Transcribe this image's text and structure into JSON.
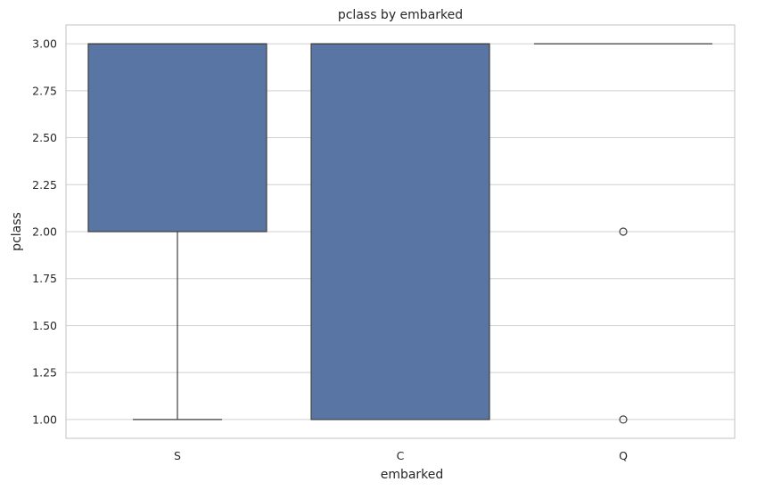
{
  "chart_data": {
    "type": "box",
    "title": "pclass by embarked",
    "xlabel": "embarked",
    "ylabel": "pclass",
    "categories": [
      "S",
      "C",
      "Q"
    ],
    "ylim": [
      0.9,
      3.1
    ],
    "yticks": [
      "1.00",
      "1.25",
      "1.50",
      "1.75",
      "2.00",
      "2.25",
      "2.50",
      "2.75",
      "3.00"
    ],
    "grid": true,
    "box_color": "#5975a4",
    "boxes": [
      {
        "category": "S",
        "q1": 2.0,
        "median": 3.0,
        "q3": 3.0,
        "whisker_low": 1.0,
        "whisker_high": 3.0,
        "outliers": []
      },
      {
        "category": "C",
        "q1": 1.0,
        "median": 3.0,
        "q3": 3.0,
        "whisker_low": 1.0,
        "whisker_high": 3.0,
        "outliers": []
      },
      {
        "category": "Q",
        "q1": 3.0,
        "median": 3.0,
        "q3": 3.0,
        "whisker_low": 3.0,
        "whisker_high": 3.0,
        "outliers": [
          2.0,
          1.0
        ]
      }
    ]
  }
}
